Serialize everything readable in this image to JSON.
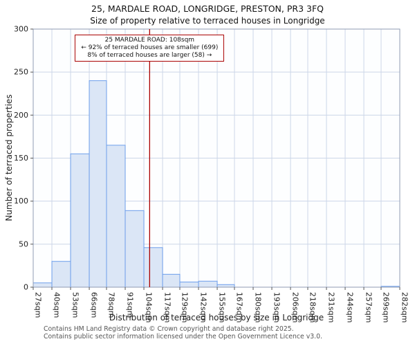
{
  "footer": {
    "line1": "Contains HM Land Registry data © Crown copyright and database right 2025.",
    "line2": "Contains public sector information licensed under the Open Government Licence v3.0."
  },
  "chart_data": {
    "type": "bar",
    "title": "25, MARDALE ROAD, LONGRIDGE, PRESTON, PR3 3FQ",
    "subtitle": "Size of property relative to terraced houses in Longridge",
    "xlabel": "Distribution of terraced houses by size in Longridge",
    "ylabel": "Number of terraced properties",
    "bin_edges": [
      27,
      40,
      53,
      66,
      78,
      91,
      104,
      117,
      129,
      142,
      155,
      167,
      180,
      193,
      206,
      218,
      231,
      244,
      257,
      269,
      282
    ],
    "categories": [
      "27sqm",
      "40sqm",
      "53sqm",
      "66sqm",
      "78sqm",
      "91sqm",
      "104sqm",
      "117sqm",
      "129sqm",
      "142sqm",
      "155sqm",
      "167sqm",
      "180sqm",
      "193sqm",
      "206sqm",
      "218sqm",
      "231sqm",
      "244sqm",
      "257sqm",
      "269sqm",
      "282sqm"
    ],
    "values": [
      5,
      30,
      155,
      240,
      165,
      89,
      46,
      15,
      6,
      7,
      3,
      0,
      0,
      0,
      0,
      0,
      0,
      0,
      0,
      1
    ],
    "ylim": [
      0,
      300
    ],
    "yticks": [
      0,
      50,
      100,
      150,
      200,
      250,
      300
    ],
    "grid": true,
    "legend": "none",
    "bar_fill": "#dbe6f6",
    "bar_stroke": "#6d9eeb",
    "grid_color": "#ccd6e8",
    "marker": {
      "value": 108,
      "color": "#aa0000"
    },
    "annotation_lines": [
      "25 MARDALE ROAD: 108sqm",
      "← 92% of terraced houses are smaller (699)",
      "8% of terraced houses are larger (58) →"
    ]
  }
}
